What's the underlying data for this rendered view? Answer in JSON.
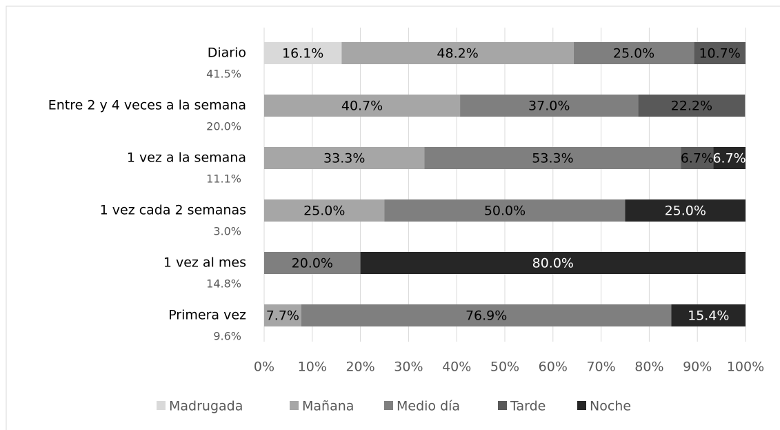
{
  "chart_data": {
    "type": "stacked_barh",
    "categories": [
      "Diario",
      "Entre 2 y 4 veces a la semana",
      "1 vez a la semana",
      "1 vez cada 2 semanas",
      "1 vez al mes",
      "Primera vez"
    ],
    "category_notes": [
      "41.5%",
      "20.0%",
      "11.1%",
      "3.0%",
      "14.8%",
      "9.6%"
    ],
    "series": [
      {
        "name": "Madrugada",
        "color": "#d9d9d9",
        "label_color": "#000000",
        "values": [
          16.1,
          null,
          null,
          null,
          null,
          null
        ],
        "value_labels": [
          "16.1%",
          null,
          null,
          null,
          null,
          null
        ]
      },
      {
        "name": "Mañana",
        "color": "#a6a6a6",
        "label_color": "#000000",
        "values": [
          48.2,
          40.7,
          33.3,
          25.0,
          null,
          7.7
        ],
        "value_labels": [
          "48.2%",
          "40.7%",
          "33.3%",
          "25.0%",
          null,
          "7.7%"
        ]
      },
      {
        "name": "Medio día",
        "color": "#7f7f7f",
        "label_color": "#000000",
        "values": [
          25.0,
          37.0,
          53.3,
          50.0,
          20.0,
          76.9
        ],
        "value_labels": [
          "25.0%",
          "37.0%",
          "53.3%",
          "50.0%",
          "20.0%",
          "76.9%"
        ]
      },
      {
        "name": "Tarde",
        "color": "#595959",
        "label_color": "#000000",
        "values": [
          10.7,
          22.2,
          6.7,
          null,
          null,
          null
        ],
        "value_labels": [
          "10.7%",
          "22.2%",
          "6.7%",
          null,
          null,
          null
        ]
      },
      {
        "name": "Noche",
        "color": "#262626",
        "label_color": "#ffffff",
        "values": [
          null,
          null,
          6.7,
          25.0,
          80.0,
          15.4
        ],
        "value_labels": [
          null,
          null,
          "6.7%",
          "25.0%",
          "80.0%",
          "15.4%"
        ]
      }
    ],
    "xlim": [
      0,
      100
    ],
    "xticks": [
      {
        "value": 0,
        "label": "0%"
      },
      {
        "value": 10,
        "label": "10%"
      },
      {
        "value": 20,
        "label": "20%"
      },
      {
        "value": 30,
        "label": "30%"
      },
      {
        "value": 40,
        "label": "40%"
      },
      {
        "value": 50,
        "label": "50%"
      },
      {
        "value": 60,
        "label": "60%"
      },
      {
        "value": 70,
        "label": "70%"
      },
      {
        "value": 80,
        "label": "80%"
      },
      {
        "value": 90,
        "label": "90%"
      },
      {
        "value": 100,
        "label": "100%"
      }
    ],
    "grid": true,
    "legend": "bottom"
  }
}
